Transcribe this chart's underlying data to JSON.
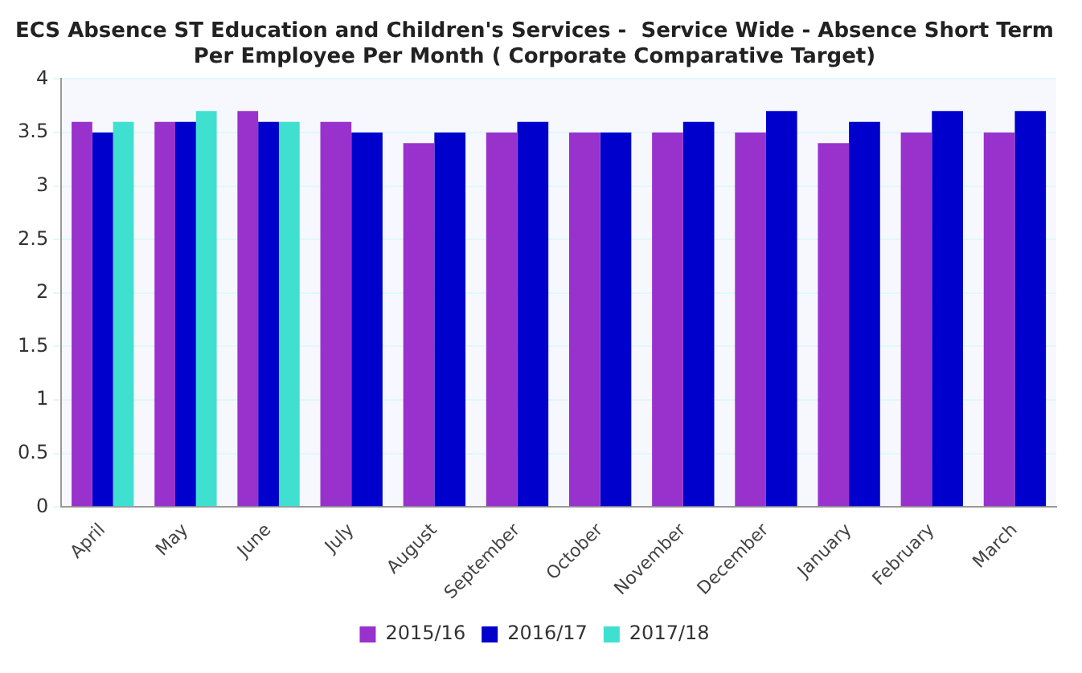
{
  "chart_data": {
    "type": "bar",
    "title": [
      "ECS Absence ST Education and Children's Services -  Service Wide - Absence Short Term",
      "Per Employee Per Month ( Corporate Comparative Target)"
    ],
    "categories": [
      "April",
      "May",
      "June",
      "July",
      "August",
      "September",
      "October",
      "November",
      "December",
      "January",
      "February",
      "March"
    ],
    "series": [
      {
        "name": "2015/16",
        "color": "#9932cc",
        "values": [
          3.6,
          3.6,
          3.7,
          3.6,
          3.4,
          3.5,
          3.5,
          3.5,
          3.5,
          3.4,
          3.5,
          3.5
        ]
      },
      {
        "name": "2016/17",
        "color": "#0000cd",
        "values": [
          3.5,
          3.6,
          3.6,
          3.5,
          3.5,
          3.6,
          3.5,
          3.6,
          3.7,
          3.6,
          3.7,
          3.7
        ]
      },
      {
        "name": "2017/18",
        "color": "#40e0d0",
        "values": [
          3.6,
          3.7,
          3.6,
          null,
          null,
          null,
          null,
          null,
          null,
          null,
          null,
          null
        ]
      }
    ],
    "ylim": [
      0,
      4
    ],
    "yticks": [
      0,
      0.5,
      1,
      1.5,
      2,
      2.5,
      3,
      3.5,
      4
    ],
    "grid": "y",
    "legend": "bottom"
  }
}
